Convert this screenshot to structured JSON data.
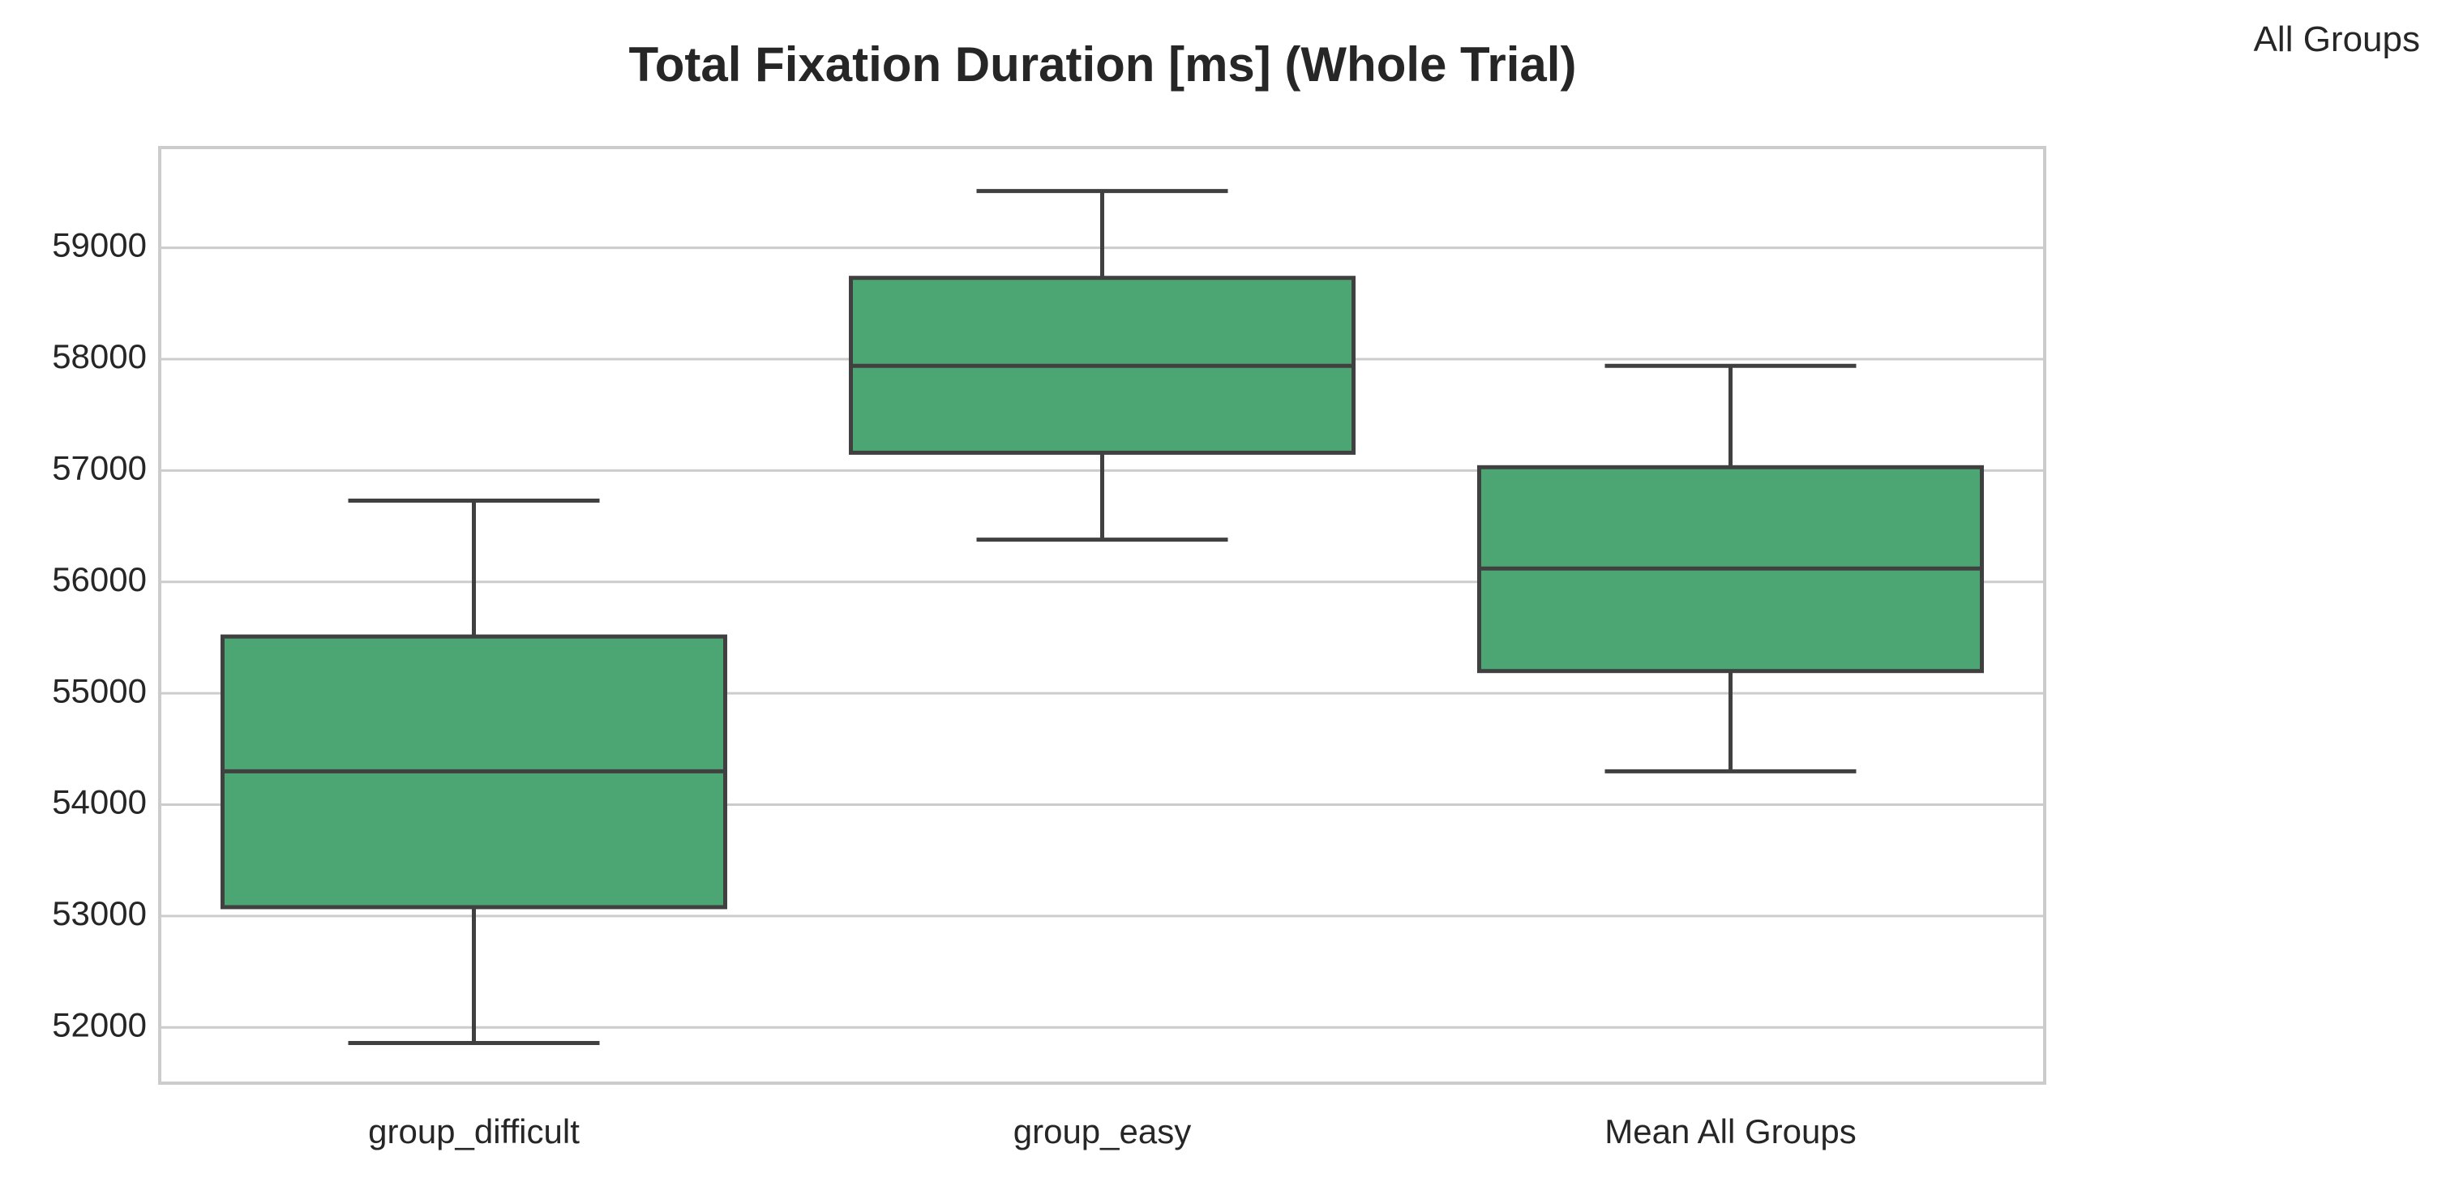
{
  "chart_data": {
    "type": "box",
    "title": "Total Fixation Duration [ms] (Whole Trial)",
    "legend_label": "All Groups",
    "legend_position": "top-right",
    "xlabel": "",
    "ylabel": "",
    "ylim": [
      51500,
      59900
    ],
    "y_ticks": [
      52000,
      53000,
      54000,
      55000,
      56000,
      57000,
      58000,
      59000
    ],
    "grid": true,
    "categories": [
      "group_difficult",
      "group_easy",
      "Mean All Groups"
    ],
    "boxes": [
      {
        "category": "group_difficult",
        "whisker_low": 51860,
        "q1": 53080,
        "median": 54300,
        "q3": 55510,
        "whisker_high": 56730
      },
      {
        "category": "group_easy",
        "whisker_low": 56380,
        "q1": 57160,
        "median": 57940,
        "q3": 58730,
        "whisker_high": 59510
      },
      {
        "category": "Mean All Groups",
        "whisker_low": 54300,
        "q1": 55200,
        "median": 56120,
        "q3": 57030,
        "whisker_high": 57940
      }
    ],
    "colors": {
      "box_fill": "#4ca674",
      "box_edge": "#404040",
      "grid": "#cccccc",
      "frame": "#cccccc",
      "text": "#262626"
    }
  }
}
